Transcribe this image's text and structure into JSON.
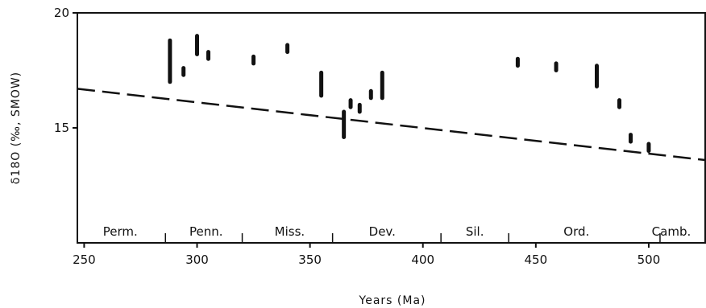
{
  "chart_data": {
    "type": "scatter",
    "title": "",
    "xlabel": "Years (Ma)",
    "ylabel": "δ18O (‰, SMOW)",
    "xlim": [
      247,
      525
    ],
    "ylim": [
      10,
      20
    ],
    "x_ticks": [
      {
        "value": 250,
        "label": "250"
      },
      {
        "value": 300,
        "label": "300"
      },
      {
        "value": 350,
        "label": "350"
      },
      {
        "value": 400,
        "label": "400"
      },
      {
        "value": 450,
        "label": "450"
      },
      {
        "value": 500,
        "label": "500"
      }
    ],
    "y_ticks": [
      {
        "value": 15,
        "label": "15"
      },
      {
        "value": 20,
        "label": "20"
      }
    ],
    "grid": false,
    "measurements": [
      {
        "age": 288,
        "min": 17.0,
        "max": 18.8
      },
      {
        "age": 294,
        "min": 17.3,
        "max": 17.6
      },
      {
        "age": 300,
        "min": 18.2,
        "max": 19.0
      },
      {
        "age": 305,
        "min": 18.0,
        "max": 18.3
      },
      {
        "age": 325,
        "min": 17.8,
        "max": 18.1
      },
      {
        "age": 340,
        "min": 18.3,
        "max": 18.6
      },
      {
        "age": 355,
        "min": 16.4,
        "max": 17.4
      },
      {
        "age": 365,
        "min": 14.6,
        "max": 15.7
      },
      {
        "age": 368,
        "min": 15.9,
        "max": 16.2
      },
      {
        "age": 372,
        "min": 15.7,
        "max": 16.0
      },
      {
        "age": 377,
        "min": 16.3,
        "max": 16.6
      },
      {
        "age": 382,
        "min": 16.3,
        "max": 17.4
      },
      {
        "age": 442,
        "min": 17.7,
        "max": 18.0
      },
      {
        "age": 459,
        "min": 17.5,
        "max": 17.8
      },
      {
        "age": 477,
        "min": 16.8,
        "max": 17.7
      },
      {
        "age": 487,
        "min": 15.9,
        "max": 16.2
      },
      {
        "age": 492,
        "min": 14.4,
        "max": 14.7
      },
      {
        "age": 500,
        "min": 14.0,
        "max": 14.3
      }
    ],
    "trend_line": {
      "style": "dashed",
      "points": [
        [
          247,
          16.7
        ],
        [
          525,
          13.6
        ]
      ]
    },
    "periods": [
      {
        "label": "Perm.",
        "center": 266
      },
      {
        "label": "Penn.",
        "center": 304
      },
      {
        "label": "Miss.",
        "center": 341
      },
      {
        "label": "Dev.",
        "center": 382
      },
      {
        "label": "Sil.",
        "center": 423
      },
      {
        "label": "Ord.",
        "center": 468
      },
      {
        "label": "Camb.",
        "center": 510
      }
    ],
    "period_boundaries": [
      286,
      320,
      360,
      408,
      438,
      505
    ]
  }
}
